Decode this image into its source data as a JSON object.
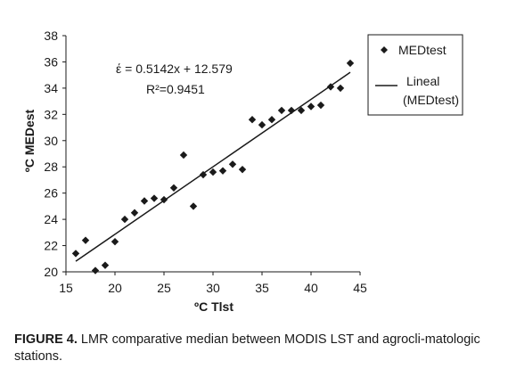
{
  "chart_data": {
    "type": "scatter",
    "xlabel": "ºC Tlst",
    "ylabel": "ºC MEDest",
    "xlim": [
      15,
      45
    ],
    "ylim": [
      20,
      38
    ],
    "x_ticks": [
      15,
      20,
      25,
      30,
      35,
      40,
      45
    ],
    "y_ticks": [
      20,
      22,
      24,
      26,
      28,
      30,
      32,
      34,
      36,
      38
    ],
    "grid": false,
    "legend_position": "top-right",
    "series": [
      {
        "name": "MEDtest",
        "marker": "diamond",
        "color": "#1a1a1a",
        "points": [
          [
            16,
            21.4
          ],
          [
            17,
            22.4
          ],
          [
            18,
            20.1
          ],
          [
            19,
            20.5
          ],
          [
            20,
            22.3
          ],
          [
            21,
            24.0
          ],
          [
            22,
            24.5
          ],
          [
            23,
            25.4
          ],
          [
            24,
            25.6
          ],
          [
            25,
            25.5
          ],
          [
            26,
            26.4
          ],
          [
            27,
            28.9
          ],
          [
            28,
            25.0
          ],
          [
            29,
            27.4
          ],
          [
            30,
            27.6
          ],
          [
            31,
            27.7
          ],
          [
            32,
            28.2
          ],
          [
            33,
            27.8
          ],
          [
            34,
            31.6
          ],
          [
            35,
            31.2
          ],
          [
            36,
            31.6
          ],
          [
            37,
            32.3
          ],
          [
            38,
            32.3
          ],
          [
            39,
            32.3
          ],
          [
            40,
            32.6
          ],
          [
            41,
            32.7
          ],
          [
            42,
            34.1
          ],
          [
            43,
            34.0
          ],
          [
            44,
            35.9
          ]
        ]
      },
      {
        "name": "Lineal (MEDtest)",
        "type": "line",
        "color": "#1a1a1a",
        "slope": 0.5142,
        "intercept": 12.579,
        "x_range": [
          16,
          44
        ]
      }
    ],
    "legend": {
      "items": [
        {
          "label_lines": [
            "MEDtest"
          ]
        },
        {
          "label_lines": [
            "Lineal",
            "(MEDtest)"
          ]
        }
      ]
    },
    "annotation": {
      "equation": "έ = 0.5142x + 12.579",
      "r_squared": "R²=0.9451"
    }
  },
  "caption": {
    "label": "FIGURE 4.",
    "text": " LMR comparative median between MODIS LST and agrocli-matologic stations."
  }
}
